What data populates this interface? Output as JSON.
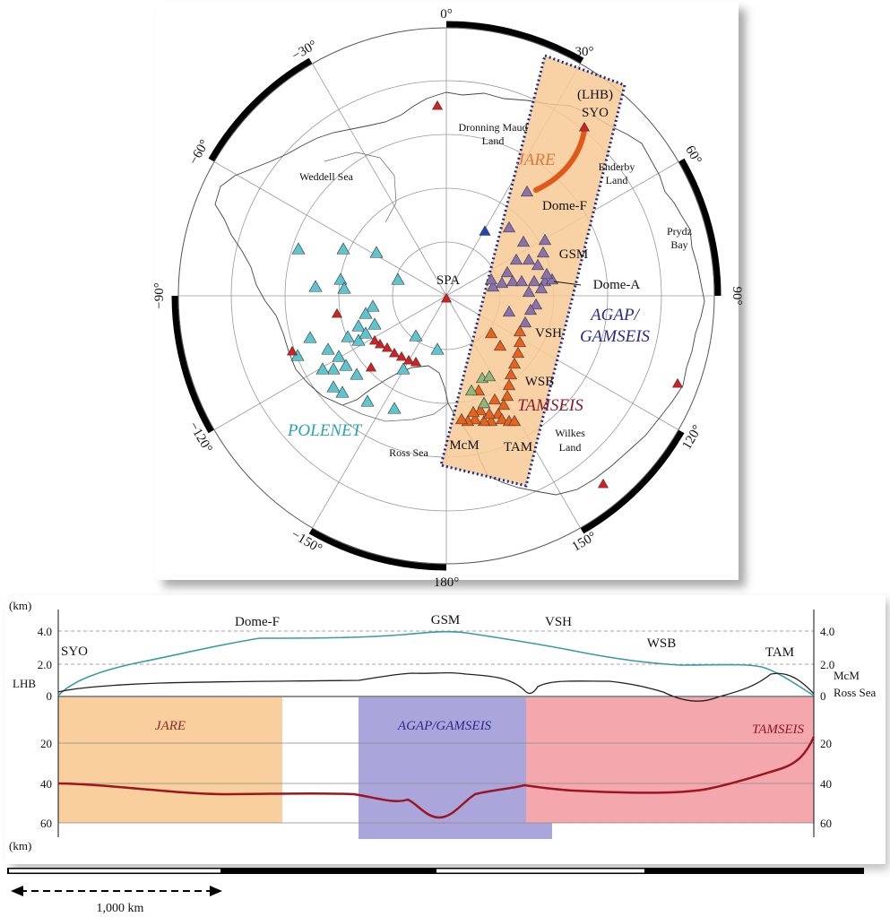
{
  "map": {
    "degree_labels": [
      "0°",
      "30°",
      "60°",
      "90°",
      "120°",
      "150°",
      "180°",
      "−150°",
      "−120°",
      "−90°",
      "−60°",
      "−30°"
    ],
    "places": {
      "dronning_maud_1": "Dronning Maud",
      "dronning_maud_2": "Land",
      "weddell": "Weddell Sea",
      "enderby_1": "Enderby",
      "enderby_2": "Land",
      "prydz_1": "Prydz",
      "prydz_2": "Bay",
      "ross": "Ross Sea",
      "wilkes_1": "Wilkes",
      "wilkes_2": "Land"
    },
    "stations": {
      "lhb": "(LHB)",
      "syo": "SYO",
      "dome_f": "Dome-F",
      "gsm": "GSM",
      "dome_a": "Dome-A",
      "vsh": "VSH",
      "wsb": "WSB",
      "mcm": "McM",
      "tam": "TAM",
      "spa": "SPA"
    },
    "networks": {
      "jare": "JARE",
      "agap_1": "AGAP/",
      "agap_2": "GAMSEIS",
      "tamseis": "TAMSEIS",
      "polenet": "POLENET"
    },
    "colors": {
      "jare": "#d85a20",
      "agap": "#8a72b0",
      "tamseis": "#e8621c",
      "polenet": "#5cc5d0",
      "red": "#d42020",
      "blue": "#2244bb",
      "green": "#8fb97a",
      "profile_box": "#f7c995",
      "dotted_border": "#1a2a8c"
    }
  },
  "profile": {
    "unit_top": "(km)",
    "unit_bottom": "(km)",
    "left_ticks_top": [
      "4.0",
      "2.0",
      "0"
    ],
    "right_ticks_top": [
      "4.0",
      "2.0",
      "0"
    ],
    "left_ticks_bottom": [
      "20",
      "40",
      "60"
    ],
    "right_ticks_bottom": [
      "20",
      "40",
      "60"
    ],
    "station_labels": {
      "syo": "SYO",
      "lhb": "LHB",
      "dome_f": "Dome-F",
      "gsm": "GSM",
      "vsh": "VSH",
      "wsb": "WSB",
      "tam": "TAM",
      "mcm": "McM",
      "ross": "Ross Sea"
    },
    "sections": {
      "jare": "JARE",
      "agap": "AGAP/GAMSEIS",
      "tamseis": "TAMSEIS"
    },
    "colors": {
      "jare_fill": "#f9cf9d",
      "agap_fill": "#aaa6dc",
      "tamseis_fill": "#f4a7ad",
      "surface": "#3a9aa6",
      "bedrock": "#222222",
      "moho": "#9c1520"
    }
  },
  "scale": {
    "label": "1,000 km"
  }
}
